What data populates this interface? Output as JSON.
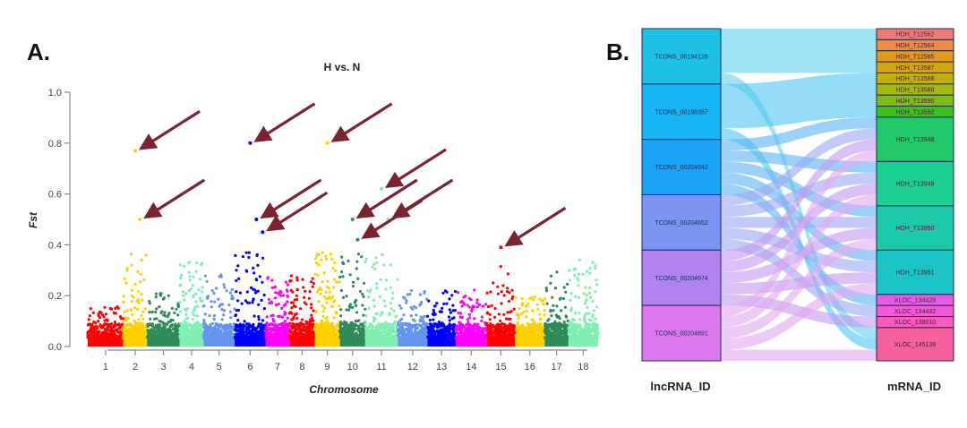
{
  "chart_data": [
    {
      "type": "scatter",
      "panel_label": "A.",
      "title": "H vs. N",
      "xlabel": "Chromosome",
      "ylabel": "Fst",
      "ylim": [
        0.0,
        1.0
      ],
      "yticks": [
        "0.0",
        "0.2",
        "0.4",
        "0.6",
        "0.8",
        "1.0"
      ],
      "grid": false,
      "categories": [
        "1",
        "2",
        "3",
        "4",
        "5",
        "6",
        "7",
        "8",
        "9",
        "10",
        "11",
        "12",
        "13",
        "14",
        "15",
        "16",
        "17",
        "18"
      ],
      "chromosome_colors": [
        "#ff0000",
        "#ffd000",
        "#2e8b57",
        "#7ff0b0",
        "#6495ed",
        "#0000ff",
        "#ff00ff",
        "#ff0000",
        "#ffd000",
        "#2e8b57",
        "#7ff0b0",
        "#6495ed",
        "#0000ff",
        "#ff00ff",
        "#ff0000",
        "#ffd000",
        "#2e8b57",
        "#7ff0b0"
      ],
      "chromosome_peak_fst": [
        0.17,
        0.77,
        0.25,
        0.4,
        0.33,
        0.8,
        0.32,
        0.33,
        0.8,
        0.5,
        0.62,
        0.25,
        0.25,
        0.25,
        0.39,
        0.22,
        0.35,
        0.41
      ],
      "highlighted_points": [
        {
          "chromosome": "2",
          "fst": 0.77
        },
        {
          "chromosome": "2",
          "fst": 0.5
        },
        {
          "chromosome": "6",
          "fst": 0.8
        },
        {
          "chromosome": "6",
          "fst": 0.5
        },
        {
          "chromosome": "6",
          "fst": 0.45
        },
        {
          "chromosome": "9",
          "fst": 0.8
        },
        {
          "chromosome": "10",
          "fst": 0.5
        },
        {
          "chromosome": "10",
          "fst": 0.42
        },
        {
          "chromosome": "11",
          "fst": 0.62
        },
        {
          "chromosome": "11",
          "fst": 0.5
        },
        {
          "chromosome": "15",
          "fst": 0.39
        }
      ],
      "arrow_color": "#7b2331"
    },
    {
      "type": "sankey",
      "panel_label": "B.",
      "left_axis_title": "lncRNA_ID",
      "right_axis_title": "mRNA_ID",
      "left_nodes": [
        {
          "id": "TCONS_00194128",
          "color": "#1ec0e6"
        },
        {
          "id": "TCONS_00198357",
          "color": "#16b4f0"
        },
        {
          "id": "TCONS_00204642",
          "color": "#1aa4f5"
        },
        {
          "id": "TCONS_00204652",
          "color": "#7a96f2"
        },
        {
          "id": "TCONS_00204674",
          "color": "#b083f0"
        },
        {
          "id": "TCONS_00204691",
          "color": "#dc78ee"
        }
      ],
      "right_nodes": [
        {
          "id": "HDH_T12562",
          "color": "#f07a7a"
        },
        {
          "id": "HDH_T12564",
          "color": "#f08a3c"
        },
        {
          "id": "HDH_T12565",
          "color": "#e39a1a"
        },
        {
          "id": "HDH_T13587",
          "color": "#d3a418"
        },
        {
          "id": "HDH_T13588",
          "color": "#c0b012"
        },
        {
          "id": "HDH_T13589",
          "color": "#a3b812"
        },
        {
          "id": "HDH_T13590",
          "color": "#7cbf12"
        },
        {
          "id": "HDH_T13592",
          "color": "#3cc21a"
        },
        {
          "id": "HDH_T13948",
          "color": "#22c96a"
        },
        {
          "id": "HDH_T13949",
          "color": "#1ccf92"
        },
        {
          "id": "HDH_T13950",
          "color": "#1ccaa8"
        },
        {
          "id": "HDH_T13951",
          "color": "#1cc4c8"
        },
        {
          "id": "XLOC_134428",
          "color": "#e65ce8"
        },
        {
          "id": "XLOC_134432",
          "color": "#ee5cd8"
        },
        {
          "id": "XLOC_138010",
          "color": "#f45cbe"
        },
        {
          "id": "XLOC_145139",
          "color": "#f6609c"
        }
      ],
      "links": [
        {
          "source": "TCONS_00194128",
          "target": "HDH_T12562",
          "value": 1
        },
        {
          "source": "TCONS_00194128",
          "target": "HDH_T12564",
          "value": 1
        },
        {
          "source": "TCONS_00194128",
          "target": "HDH_T12565",
          "value": 1
        },
        {
          "source": "TCONS_00194128",
          "target": "HDH_T13587",
          "value": 1
        },
        {
          "source": "TCONS_00194128",
          "target": "XLOC_145139",
          "value": 1
        },
        {
          "source": "TCONS_00198357",
          "target": "HDH_T13588",
          "value": 1
        },
        {
          "source": "TCONS_00198357",
          "target": "HDH_T13589",
          "value": 1
        },
        {
          "source": "TCONS_00198357",
          "target": "HDH_T13590",
          "value": 1
        },
        {
          "source": "TCONS_00198357",
          "target": "HDH_T13592",
          "value": 1
        },
        {
          "source": "TCONS_00198357",
          "target": "XLOC_145139",
          "value": 1
        },
        {
          "source": "TCONS_00204642",
          "target": "HDH_T13948",
          "value": 1
        },
        {
          "source": "TCONS_00204642",
          "target": "HDH_T13949",
          "value": 1
        },
        {
          "source": "TCONS_00204642",
          "target": "HDH_T13950",
          "value": 1
        },
        {
          "source": "TCONS_00204642",
          "target": "HDH_T13951",
          "value": 1
        },
        {
          "source": "TCONS_00204642",
          "target": "XLOC_134428",
          "value": 1
        },
        {
          "source": "TCONS_00204652",
          "target": "HDH_T13948",
          "value": 1
        },
        {
          "source": "TCONS_00204652",
          "target": "HDH_T13949",
          "value": 1
        },
        {
          "source": "TCONS_00204652",
          "target": "HDH_T13950",
          "value": 1
        },
        {
          "source": "TCONS_00204652",
          "target": "HDH_T13951",
          "value": 1
        },
        {
          "source": "TCONS_00204652",
          "target": "XLOC_134432",
          "value": 1
        },
        {
          "source": "TCONS_00204674",
          "target": "HDH_T13948",
          "value": 1
        },
        {
          "source": "TCONS_00204674",
          "target": "HDH_T13949",
          "value": 1
        },
        {
          "source": "TCONS_00204674",
          "target": "HDH_T13950",
          "value": 1
        },
        {
          "source": "TCONS_00204674",
          "target": "HDH_T13951",
          "value": 1
        },
        {
          "source": "TCONS_00204674",
          "target": "XLOC_138010",
          "value": 1
        },
        {
          "source": "TCONS_00204691",
          "target": "HDH_T13948",
          "value": 1
        },
        {
          "source": "TCONS_00204691",
          "target": "HDH_T13949",
          "value": 1
        },
        {
          "source": "TCONS_00204691",
          "target": "HDH_T13950",
          "value": 1
        },
        {
          "source": "TCONS_00204691",
          "target": "HDH_T13951",
          "value": 1
        },
        {
          "source": "TCONS_00204691",
          "target": "XLOC_145139",
          "value": 1
        }
      ]
    }
  ]
}
